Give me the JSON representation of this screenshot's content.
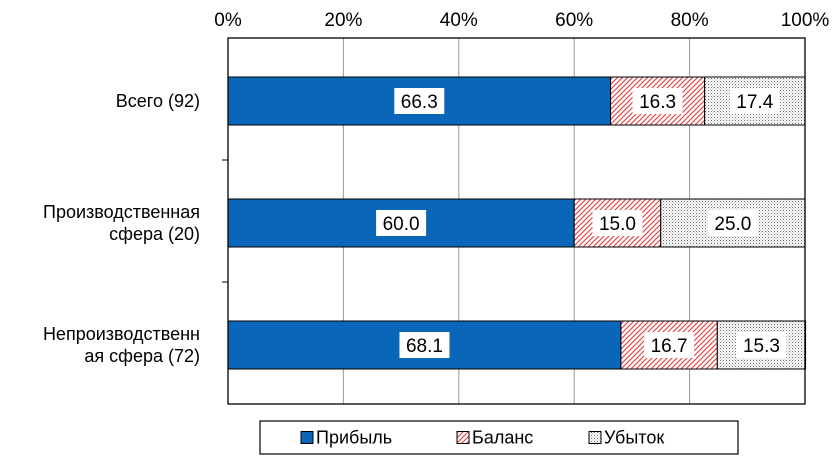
{
  "chart_data": {
    "type": "bar",
    "orientation": "horizontal",
    "stacked": true,
    "percent": true,
    "title": "",
    "xlabel": "",
    "ylabel": "",
    "xlim": [
      0,
      100
    ],
    "x_ticks": [
      "0%",
      "20%",
      "40%",
      "60%",
      "80%",
      "100%"
    ],
    "grid": "vertical",
    "legend_position": "bottom",
    "categories": [
      [
        "Всего (92)"
      ],
      [
        "Производственная",
        "сфера (20)"
      ],
      [
        "Непроизводственн",
        "ая сфера (72)"
      ]
    ],
    "series": [
      {
        "name": "Прибыль",
        "values": [
          66.3,
          60.0,
          68.1
        ],
        "labels": [
          "66.3",
          "60.0",
          "68.1"
        ],
        "color": "#0a66b8",
        "fill": "solid"
      },
      {
        "name": "Баланс",
        "values": [
          16.3,
          15.0,
          16.7
        ],
        "labels": [
          "16.3",
          "15.0",
          "16.7"
        ],
        "color": "#e03a3a",
        "fill": "diagonal-hatch"
      },
      {
        "name": "Убыток",
        "values": [
          17.4,
          25.0,
          15.3
        ],
        "labels": [
          "17.4",
          "25.0",
          "15.3"
        ],
        "color": "#7a7a7a",
        "fill": "dots"
      }
    ]
  }
}
